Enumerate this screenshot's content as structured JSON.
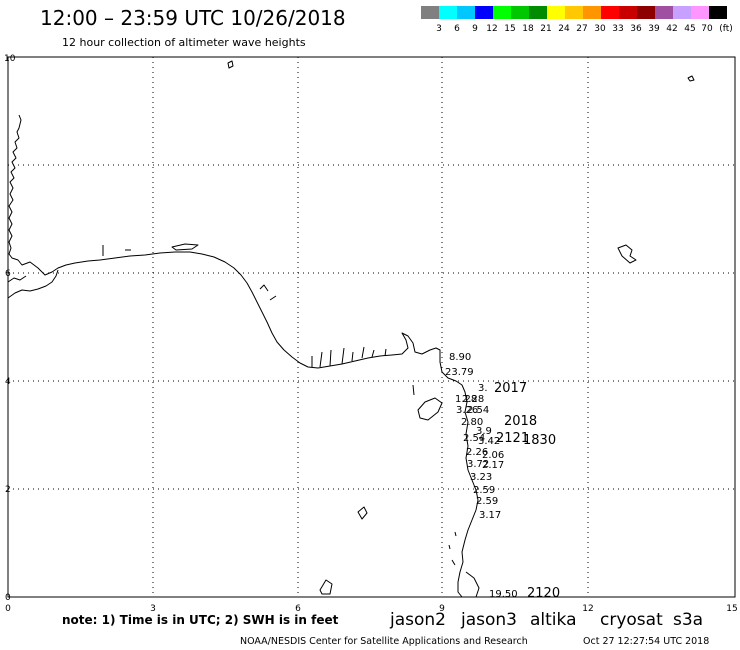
{
  "header": {
    "title": "12:00 – 23:59 UTC 10/26/2018",
    "subtitle": "12 hour collection of altimeter wave heights"
  },
  "colorbar": {
    "colors": [
      "#808080",
      "#00ffff",
      "#00c8ff",
      "#0000ff",
      "#00ff00",
      "#00c800",
      "#008c00",
      "#ffff00",
      "#ffc800",
      "#ff9600",
      "#ff0000",
      "#c80000",
      "#8c0000",
      "#a050a0",
      "#c8a0ff",
      "#ff96ff",
      "#000000"
    ],
    "labels": [
      "3",
      "6",
      "9",
      "12",
      "15",
      "18",
      "21",
      "24",
      "27",
      "30",
      "33",
      "36",
      "39",
      "42",
      "45",
      "70",
      "(ft)"
    ]
  },
  "map": {
    "x_ticks": [
      "0",
      "3",
      "6",
      "9",
      "12",
      "15"
    ],
    "y_ticks": [
      "0",
      "2",
      "4",
      "6",
      "10"
    ],
    "track_labels": [
      {
        "text": "8.90",
        "color": "#00c8ff"
      },
      {
        "text": "23.79",
        "color": "#e6d200"
      },
      {
        "text": "3.",
        "color": "#707070"
      },
      {
        "text": "2017",
        "color": "#008c00"
      },
      {
        "text": "1.28",
        "color": "#707070"
      },
      {
        "text": "2.28",
        "color": "#707070"
      },
      {
        "text": "3.26",
        "color": "#707070"
      },
      {
        "text": "2.54",
        "color": "#707070"
      },
      {
        "text": "2018",
        "color": "#008c00"
      },
      {
        "text": "2.80",
        "color": "#707070"
      },
      {
        "text": "3.9",
        "color": "#00c8ff"
      },
      {
        "text": "2.54",
        "color": "#707070"
      },
      {
        "text": "3.42",
        "color": "#00c8ff"
      },
      {
        "text": "2121",
        "color": "#8c0000"
      },
      {
        "text": "1830",
        "color": "#ff0000"
      },
      {
        "text": "2.26",
        "color": "#707070"
      },
      {
        "text": "2.06",
        "color": "#707070"
      },
      {
        "text": "3.72",
        "color": "#00c8ff"
      },
      {
        "text": "2.17",
        "color": "#707070"
      },
      {
        "text": "3.23",
        "color": "#00c8ff"
      },
      {
        "text": "2.59",
        "color": "#707070"
      },
      {
        "text": "2.59",
        "color": "#707070"
      },
      {
        "text": "3.17",
        "color": "#00c8ff"
      },
      {
        "text": "19.50",
        "color": "#00a000"
      },
      {
        "text": "2120",
        "color": "#8c0000"
      }
    ]
  },
  "legend": {
    "note": "note: 1) Time is in UTC; 2) SWH is in feet",
    "satellites": [
      {
        "name": "jason2",
        "color": "#0000dc"
      },
      {
        "name": "jason3",
        "color": "#009600"
      },
      {
        "name": "altika",
        "color": "#ff9600"
      },
      {
        "name": "cryosat",
        "color": "#ff0000"
      },
      {
        "name": "s3a",
        "color": "#8c0000"
      }
    ]
  },
  "footer": {
    "credit": "NOAA/NESDIS Center for Satellite Applications and Research",
    "timestamp": "Oct 27 12:27:54 UTC 2018"
  }
}
